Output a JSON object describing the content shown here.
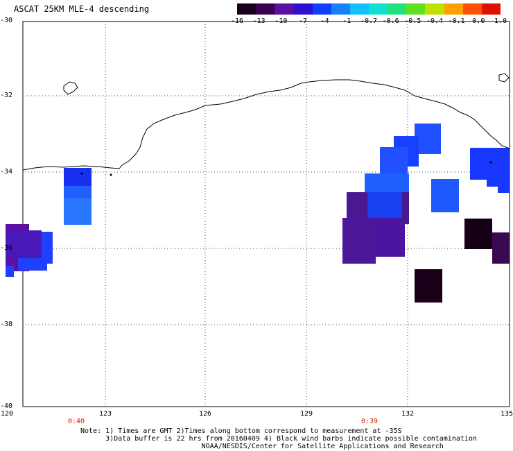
{
  "title": "ASCAT 25KM MLE-4 descending",
  "colorbar": {
    "labels": [
      "-16",
      "-13",
      "-10",
      "-7",
      "-4",
      "-1",
      "-0.7",
      "-0.6",
      "-0.5",
      "-0.4",
      "-0.1",
      "0.0",
      "1.0"
    ],
    "colors": [
      "#1a0018",
      "#3a0050",
      "#5a10a0",
      "#3010d0",
      "#1040ff",
      "#1880ff",
      "#10c0ff",
      "#10e0d0",
      "#20e080",
      "#60e020",
      "#c0e000",
      "#ffa000",
      "#ff5000",
      "#e01000"
    ]
  },
  "axes": {
    "lat_labels": [
      "-30",
      "-32",
      "-34",
      "-36",
      "-38",
      "-40"
    ],
    "lon_labels": [
      "120",
      "123",
      "126",
      "129",
      "132",
      "135"
    ]
  },
  "time_labels": [
    "0:40",
    "0:39"
  ],
  "notes": [
    "Note: 1) Times are GMT 2)Times along bottom correspond to measurement at -35S",
    "      3)Data buffer is 22 hrs from 20160409 4) Black wind barbs indicate possible contamination",
    "                             NOAA/NESDIS/Center for Satellite Applications and Research"
  ],
  "map_data": {
    "lat_range": [
      -40,
      -30
    ],
    "lon_range": [
      120,
      135
    ],
    "grid_lines": true
  }
}
